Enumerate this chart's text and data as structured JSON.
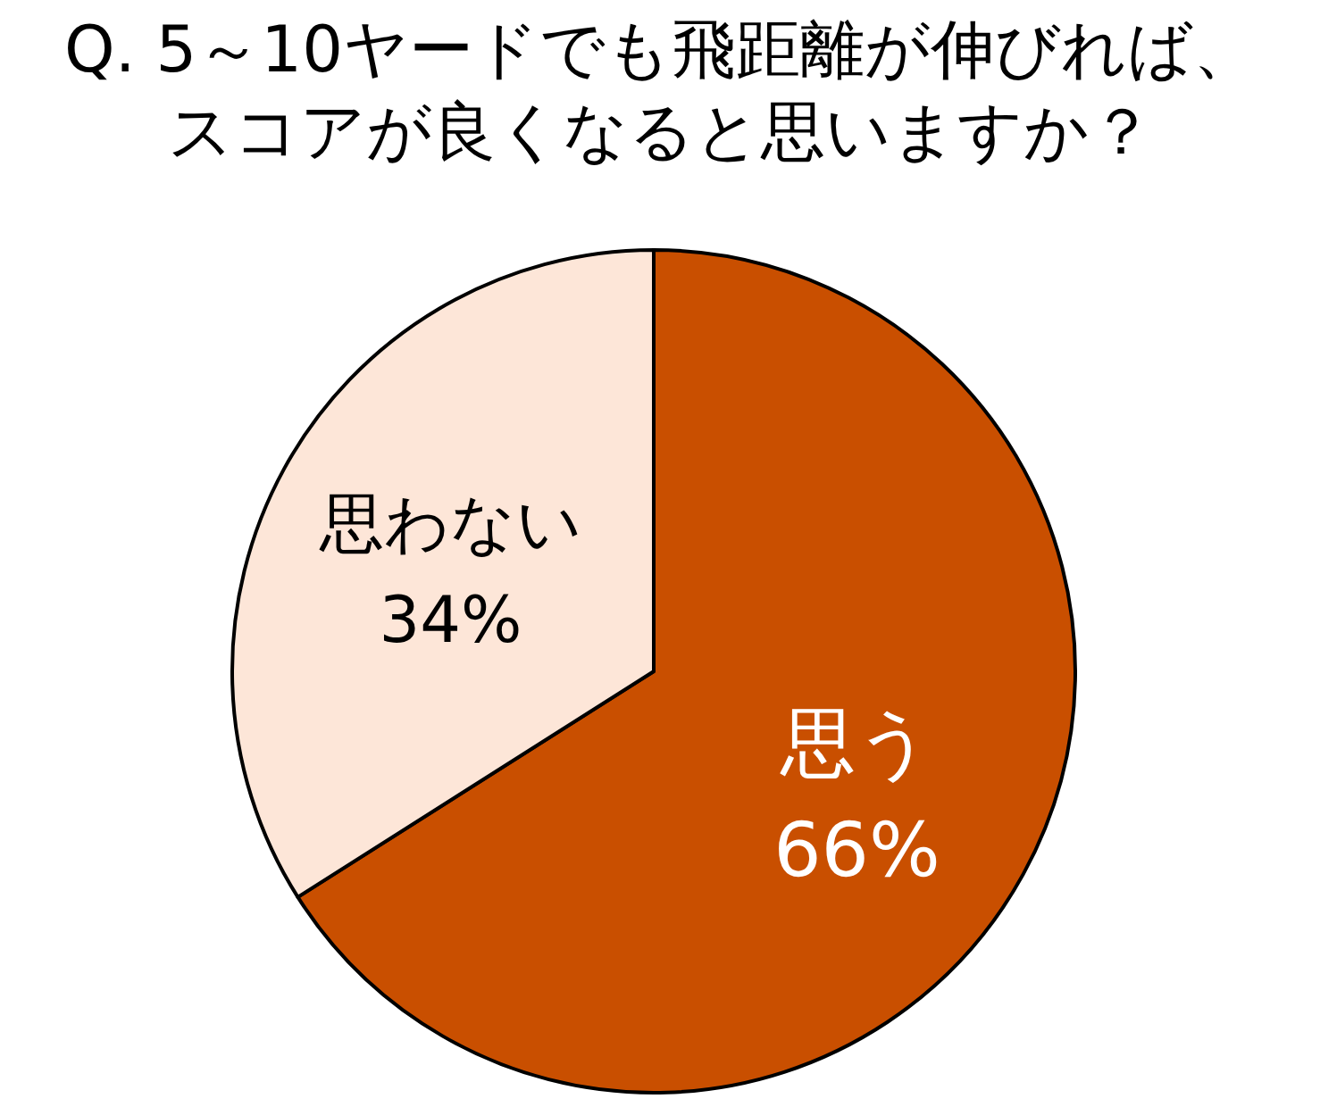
{
  "chart_data": {
    "type": "pie",
    "title": "Q. 5～10ヤードでも飛距離が伸びれば、スコアが良くなると思いますか？",
    "categories": [
      "思う",
      "思わない"
    ],
    "values": [
      66,
      34
    ],
    "colors": [
      "#c94f00",
      "#fde6d8"
    ],
    "value_labels": [
      "66%",
      "34%"
    ]
  }
}
